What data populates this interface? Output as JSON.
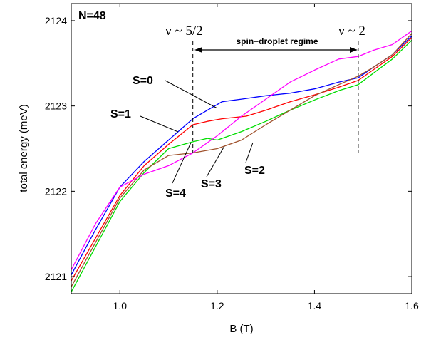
{
  "chart_data": {
    "type": "line",
    "title": "",
    "xlabel": "B (T)",
    "ylabel": "total energy (meV)",
    "xlim": [
      0.9,
      1.6
    ],
    "ylim": [
      2120.8,
      2124.2
    ],
    "xticks": [
      1.0,
      1.2,
      1.4,
      1.6
    ],
    "xtick_labels": [
      "1.0",
      "1.2",
      "1.4",
      "1.6"
    ],
    "yticks": [
      2121,
      2122,
      2123,
      2124
    ],
    "ytick_labels": [
      "2121",
      "2122",
      "2123",
      "2124"
    ],
    "grid": false,
    "legend": "none",
    "annotations": {
      "n_label": "N=48",
      "nu_left": "ν ~ 5/2",
      "nu_right": "ν ~ 2",
      "regime": "spin−droplet regime",
      "s0": "S=0",
      "s1": "S=1",
      "s2": "S=2",
      "s3": "S=3",
      "s4": "S=4"
    },
    "markers": {
      "nu_left_B": 1.15,
      "nu_right_B": 1.49
    },
    "series": [
      {
        "id": "S=0",
        "color": "#0000ff",
        "x": [
          0.9,
          0.95,
          1.0,
          1.05,
          1.1,
          1.15,
          1.18,
          1.21,
          1.25,
          1.3,
          1.35,
          1.4,
          1.45,
          1.49,
          1.52,
          1.56,
          1.6
        ],
        "y": [
          2121.02,
          2121.55,
          2122.05,
          2122.35,
          2122.6,
          2122.85,
          2122.95,
          2123.05,
          2123.08,
          2123.12,
          2123.15,
          2123.2,
          2123.28,
          2123.33,
          2123.45,
          2123.6,
          2123.82
        ]
      },
      {
        "id": "S=1",
        "color": "#ff0000",
        "x": [
          0.9,
          0.95,
          1.0,
          1.05,
          1.1,
          1.15,
          1.18,
          1.21,
          1.26,
          1.3,
          1.35,
          1.4,
          1.45,
          1.49,
          1.52,
          1.56,
          1.6
        ],
        "y": [
          2120.95,
          2121.45,
          2121.95,
          2122.3,
          2122.55,
          2122.78,
          2122.82,
          2122.85,
          2122.88,
          2122.95,
          2123.05,
          2123.13,
          2123.22,
          2123.3,
          2123.42,
          2123.58,
          2123.8
        ]
      },
      {
        "id": "S=2",
        "color": "#00dd00",
        "x": [
          0.9,
          0.95,
          1.0,
          1.05,
          1.1,
          1.15,
          1.18,
          1.2,
          1.25,
          1.3,
          1.35,
          1.4,
          1.45,
          1.49,
          1.52,
          1.56,
          1.6
        ],
        "y": [
          2120.82,
          2121.35,
          2121.88,
          2122.22,
          2122.5,
          2122.58,
          2122.62,
          2122.6,
          2122.7,
          2122.82,
          2122.95,
          2123.07,
          2123.18,
          2123.25,
          2123.38,
          2123.55,
          2123.77
        ]
      },
      {
        "id": "S=3",
        "color": "#a0522d",
        "x": [
          0.9,
          0.95,
          1.0,
          1.05,
          1.1,
          1.15,
          1.18,
          1.2,
          1.25,
          1.3,
          1.35,
          1.4,
          1.45,
          1.49,
          1.52,
          1.56,
          1.6
        ],
        "y": [
          2120.88,
          2121.4,
          2121.92,
          2122.25,
          2122.42,
          2122.45,
          2122.48,
          2122.5,
          2122.6,
          2122.78,
          2122.95,
          2123.12,
          2123.25,
          2123.35,
          2123.45,
          2123.6,
          2123.85
        ]
      },
      {
        "id": "S=4",
        "color": "#ff00ff",
        "x": [
          0.9,
          0.95,
          1.0,
          1.05,
          1.1,
          1.15,
          1.2,
          1.25,
          1.3,
          1.35,
          1.4,
          1.45,
          1.49,
          1.52,
          1.56,
          1.6
        ],
        "y": [
          2121.08,
          2121.62,
          2122.05,
          2122.2,
          2122.3,
          2122.45,
          2122.65,
          2122.88,
          2123.08,
          2123.28,
          2123.42,
          2123.55,
          2123.58,
          2123.65,
          2123.72,
          2123.88
        ]
      }
    ]
  }
}
